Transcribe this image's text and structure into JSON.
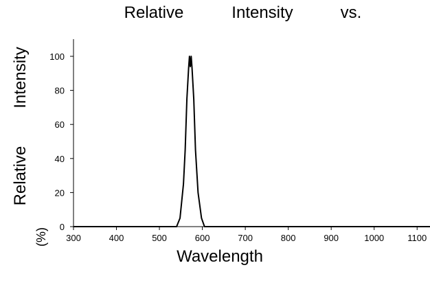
{
  "chart_data": {
    "type": "line",
    "title_words": [
      "Relative",
      "Intensity",
      "vs."
    ],
    "xlabel": "Wavelength",
    "ylabel_words": [
      "Relative",
      "Intensity"
    ],
    "ylabel_fragment": "(%)",
    "xlim": [
      300,
      1130
    ],
    "ylim": [
      0,
      100
    ],
    "x_ticks": [
      300,
      400,
      500,
      600,
      700,
      800,
      900,
      1000,
      1100
    ],
    "y_ticks": [
      0,
      20,
      40,
      60,
      80,
      100
    ],
    "grid": false,
    "series": [
      {
        "x": [
          300,
          540,
          548,
          556,
          560,
          564,
          568,
          570,
          572,
          574,
          576,
          580,
          584,
          590,
          598,
          605,
          1130
        ],
        "y": [
          0,
          0,
          5,
          25,
          45,
          75,
          93,
          100,
          94,
          100,
          93,
          75,
          45,
          20,
          5,
          0,
          0
        ]
      }
    ]
  }
}
